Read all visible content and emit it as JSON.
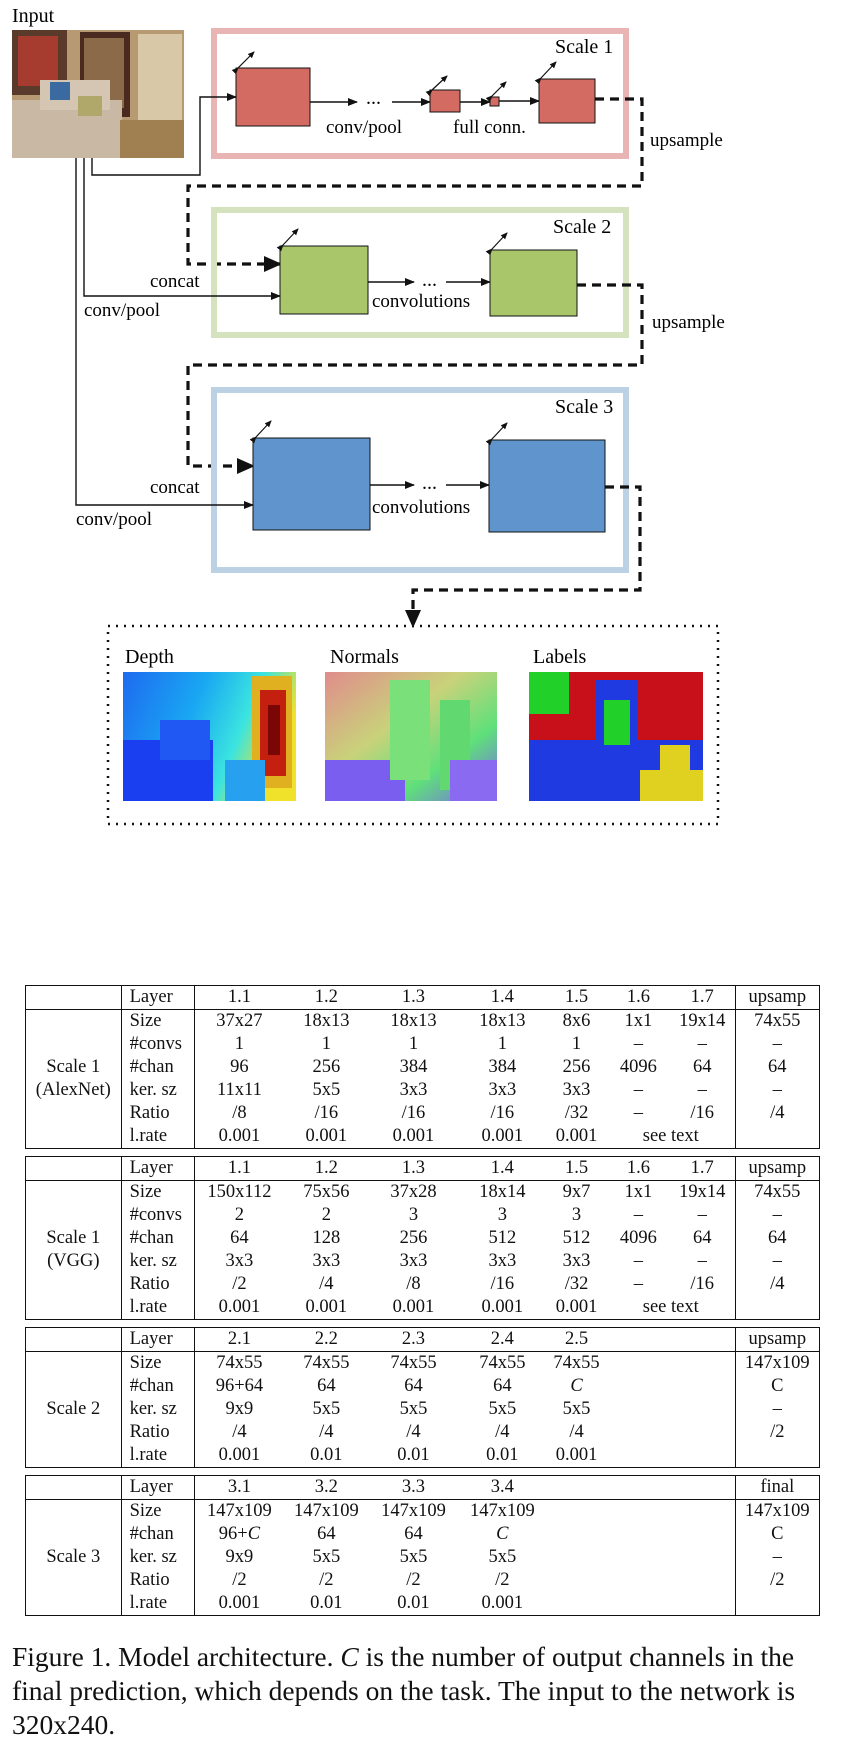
{
  "diagram": {
    "input_label": "Input",
    "scale1_title": "Scale 1",
    "scale2_title": "Scale 2",
    "scale3_title": "Scale 3",
    "conv_pool": "conv/pool",
    "ellipsis": "...",
    "full_conn": "full conn.",
    "upsample": "upsample",
    "concat": "concat",
    "convolutions": "convolutions",
    "output_labels": [
      "Depth",
      "Normals",
      "Labels"
    ],
    "colors": {
      "scale1_box": "#e8b4b4",
      "scale1_fill": "#d36b63",
      "scale2_box": "#d4e3bd",
      "scale2_fill": "#a9c66b",
      "scale3_box": "#bcd1e4",
      "scale3_fill": "#5f95cc"
    }
  },
  "tables": [
    {
      "scale_lines": [
        "Scale 1",
        "(AlexNet)"
      ],
      "header": [
        "Layer",
        "1.1",
        "1.2",
        "1.3",
        "1.4",
        "1.5",
        "1.6",
        "1.7",
        "upsamp"
      ],
      "rows": [
        {
          "label": "Size",
          "cells": [
            "37x27",
            "18x13",
            "18x13",
            "18x13",
            "8x6",
            "1x1",
            "19x14"
          ],
          "last": "74x55"
        },
        {
          "label": "#convs",
          "cells": [
            "1",
            "1",
            "1",
            "1",
            "1",
            "–",
            "–"
          ],
          "last": "–"
        },
        {
          "label": "#chan",
          "cells": [
            "96",
            "256",
            "384",
            "384",
            "256",
            "4096",
            "64"
          ],
          "last": "64"
        },
        {
          "label": "ker. sz",
          "cells": [
            "11x11",
            "5x5",
            "3x3",
            "3x3",
            "3x3",
            "–",
            "–"
          ],
          "last": "–"
        },
        {
          "label": "Ratio",
          "cells": [
            "/8",
            "/16",
            "/16",
            "/16",
            "/32",
            "–",
            "/16"
          ],
          "last": "/4"
        },
        {
          "label": "l.rate",
          "cells": [
            "0.001",
            "0.001",
            "0.001",
            "0.001",
            "0.001",
            "see text"
          ],
          "last": ""
        }
      ]
    },
    {
      "scale_lines": [
        "Scale 1",
        "(VGG)"
      ],
      "header": [
        "Layer",
        "1.1",
        "1.2",
        "1.3",
        "1.4",
        "1.5",
        "1.6",
        "1.7",
        "upsamp"
      ],
      "rows": [
        {
          "label": "Size",
          "cells": [
            "150x112",
            "75x56",
            "37x28",
            "18x14",
            "9x7",
            "1x1",
            "19x14"
          ],
          "last": "74x55"
        },
        {
          "label": "#convs",
          "cells": [
            "2",
            "2",
            "3",
            "3",
            "3",
            "–",
            "–"
          ],
          "last": "–"
        },
        {
          "label": "#chan",
          "cells": [
            "64",
            "128",
            "256",
            "512",
            "512",
            "4096",
            "64"
          ],
          "last": "64"
        },
        {
          "label": "ker. sz",
          "cells": [
            "3x3",
            "3x3",
            "3x3",
            "3x3",
            "3x3",
            "–",
            "–"
          ],
          "last": "–"
        },
        {
          "label": "Ratio",
          "cells": [
            "/2",
            "/4",
            "/8",
            "/16",
            "/32",
            "–",
            "/16"
          ],
          "last": "/4"
        },
        {
          "label": "l.rate",
          "cells": [
            "0.001",
            "0.001",
            "0.001",
            "0.001",
            "0.001",
            "see text"
          ],
          "last": ""
        }
      ]
    },
    {
      "scale_lines": [
        "Scale 2"
      ],
      "header": [
        "Layer",
        "2.1",
        "2.2",
        "2.3",
        "2.4",
        "2.5",
        "",
        "",
        "upsamp"
      ],
      "rows": [
        {
          "label": "Size",
          "cells": [
            "74x55",
            "74x55",
            "74x55",
            "74x55",
            "74x55",
            "",
            ""
          ],
          "last": "147x109"
        },
        {
          "label": "#chan",
          "cells": [
            "96+64",
            "64",
            "64",
            "64",
            "C",
            "",
            ""
          ],
          "last": "C"
        },
        {
          "label": "ker. sz",
          "cells": [
            "9x9",
            "5x5",
            "5x5",
            "5x5",
            "5x5",
            "",
            ""
          ],
          "last": "–"
        },
        {
          "label": "Ratio",
          "cells": [
            "/4",
            "/4",
            "/4",
            "/4",
            "/4",
            "",
            ""
          ],
          "last": "/2"
        },
        {
          "label": "l.rate",
          "cells": [
            "0.001",
            "0.01",
            "0.01",
            "0.01",
            "0.001",
            "",
            ""
          ],
          "last": ""
        }
      ]
    },
    {
      "scale_lines": [
        "Scale 3"
      ],
      "header": [
        "Layer",
        "3.1",
        "3.2",
        "3.3",
        "3.4",
        "",
        "",
        "",
        "final"
      ],
      "rows": [
        {
          "label": "Size",
          "cells": [
            "147x109",
            "147x109",
            "147x109",
            "147x109",
            "",
            "",
            ""
          ],
          "last": "147x109"
        },
        {
          "label": "#chan",
          "cells": [
            "96+C",
            "64",
            "64",
            "C",
            "",
            "",
            ""
          ],
          "last": "C"
        },
        {
          "label": "ker. sz",
          "cells": [
            "9x9",
            "5x5",
            "5x5",
            "5x5",
            "",
            "",
            ""
          ],
          "last": "–"
        },
        {
          "label": "Ratio",
          "cells": [
            "/2",
            "/2",
            "/2",
            "/2",
            "",
            "",
            ""
          ],
          "last": "/2"
        },
        {
          "label": "l.rate",
          "cells": [
            "0.001",
            "0.01",
            "0.01",
            "0.001",
            "",
            "",
            ""
          ],
          "last": ""
        }
      ]
    }
  ],
  "caption": {
    "prefix": "Figure 1. Model architecture. ",
    "var": "C",
    "rest": " is the number of output channels in the final prediction, which depends on the task. The input to the network is 320x240."
  }
}
